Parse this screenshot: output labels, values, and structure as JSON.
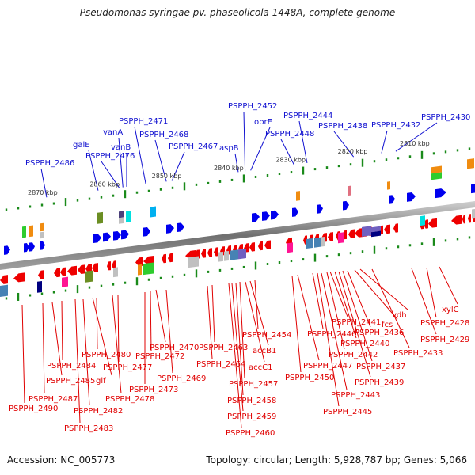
{
  "title": "Pseudomonas syringae pv. phaseolicola 1448A, complete genome",
  "footer": {
    "accession": "Accession: NC_005773",
    "summary": "Topology: circular; Length: 5,928,787 bp; Genes: 5,066"
  },
  "colors": {
    "forward_gene": "#0000ee",
    "reverse_gene": "#ee0000",
    "backbone": "#808080",
    "tick": "#1a8a1a",
    "forward_label": "#1010d0",
    "reverse_label": "#e00000"
  },
  "scale_ticks": [
    {
      "label": "2870 kbp",
      "kbp": 2870
    },
    {
      "label": "2860 kbp",
      "kbp": 2860
    },
    {
      "label": "2850 kbp",
      "kbp": 2850
    },
    {
      "label": "2840 kbp",
      "kbp": 2840
    },
    {
      "label": "2830 kbp",
      "kbp": 2830
    },
    {
      "label": "2820 kbp",
      "kbp": 2820
    },
    {
      "label": "2810 kbp",
      "kbp": 2810
    }
  ],
  "forward_labels": [
    {
      "name": "PSPPH_2486",
      "kbp": 2869.5
    },
    {
      "name": "galE",
      "kbp": 2861.2
    },
    {
      "name": "PSPPH_2476",
      "kbp": 2857.8
    },
    {
      "name": "vanA",
      "kbp": 2857.2
    },
    {
      "name": "vanB",
      "kbp": 2856.6
    },
    {
      "name": "PSPPH_2471",
      "kbp": 2853.5
    },
    {
      "name": "PSPPH_2468",
      "kbp": 2850.2
    },
    {
      "name": "PSPPH_2467",
      "kbp": 2849.3
    },
    {
      "name": "aspB",
      "kbp": 2838.6
    },
    {
      "name": "PSPPH_2452",
      "kbp": 2837.5
    },
    {
      "name": "oprE",
      "kbp": 2836.6
    },
    {
      "name": "PSPPH_2448",
      "kbp": 2829.6
    },
    {
      "name": "PSPPH_2444",
      "kbp": 2827.5
    },
    {
      "name": "PSPPH_2438",
      "kbp": 2820.0
    },
    {
      "name": "PSPPH_2432",
      "kbp": 2815.5
    },
    {
      "name": "PSPPH_2430",
      "kbp": 2813.2
    }
  ],
  "reverse_labels": [
    {
      "name": "PSPPH_2490"
    },
    {
      "name": "PSPPH_2487"
    },
    {
      "name": "PSPPH_2485"
    },
    {
      "name": "PSPPH_2484"
    },
    {
      "name": "PSPPH_2483"
    },
    {
      "name": "PSPPH_2482"
    },
    {
      "name": "glf"
    },
    {
      "name": "PSPPH_2480"
    },
    {
      "name": "PSPPH_2478"
    },
    {
      "name": "PSPPH_2477"
    },
    {
      "name": "PSPPH_2473"
    },
    {
      "name": "PSPPH_2472"
    },
    {
      "name": "PSPPH_2470"
    },
    {
      "name": "PSPPH_2469"
    },
    {
      "name": "PSPPH_2464"
    },
    {
      "name": "PSPPH_2463"
    },
    {
      "name": "PSPPH_2460"
    },
    {
      "name": "PSPPH_2459"
    },
    {
      "name": "PSPPH_2458"
    },
    {
      "name": "PSPPH_2457"
    },
    {
      "name": "accC1"
    },
    {
      "name": "accB1"
    },
    {
      "name": "PSPPH_2454"
    },
    {
      "name": "PSPPH_2450"
    },
    {
      "name": "PSPPH_2447"
    },
    {
      "name": "PSPPH_2446"
    },
    {
      "name": "PSPPH_2445"
    },
    {
      "name": "PSPPH_2443"
    },
    {
      "name": "PSPPH_2442"
    },
    {
      "name": "PSPPH_2441"
    },
    {
      "name": "PSPPH_2440"
    },
    {
      "name": "PSPPH_2439"
    },
    {
      "name": "PSPPH_2437"
    },
    {
      "name": "PSPPH_2436"
    },
    {
      "name": "fcs"
    },
    {
      "name": "vdh"
    },
    {
      "name": "PSPPH_2433"
    },
    {
      "name": "PSPPH_2429"
    },
    {
      "name": "PSPPH_2428"
    },
    {
      "name": "xylC"
    }
  ],
  "cog_colors": [
    "#2ecc2e",
    "#f08c10",
    "#c0c0c0",
    "#6b8e23",
    "#4a3f7a",
    "#00e0e0",
    "#00b0f0",
    "#ff1493",
    "#4682b4",
    "#000080",
    "#7060c0",
    "#e07080"
  ]
}
